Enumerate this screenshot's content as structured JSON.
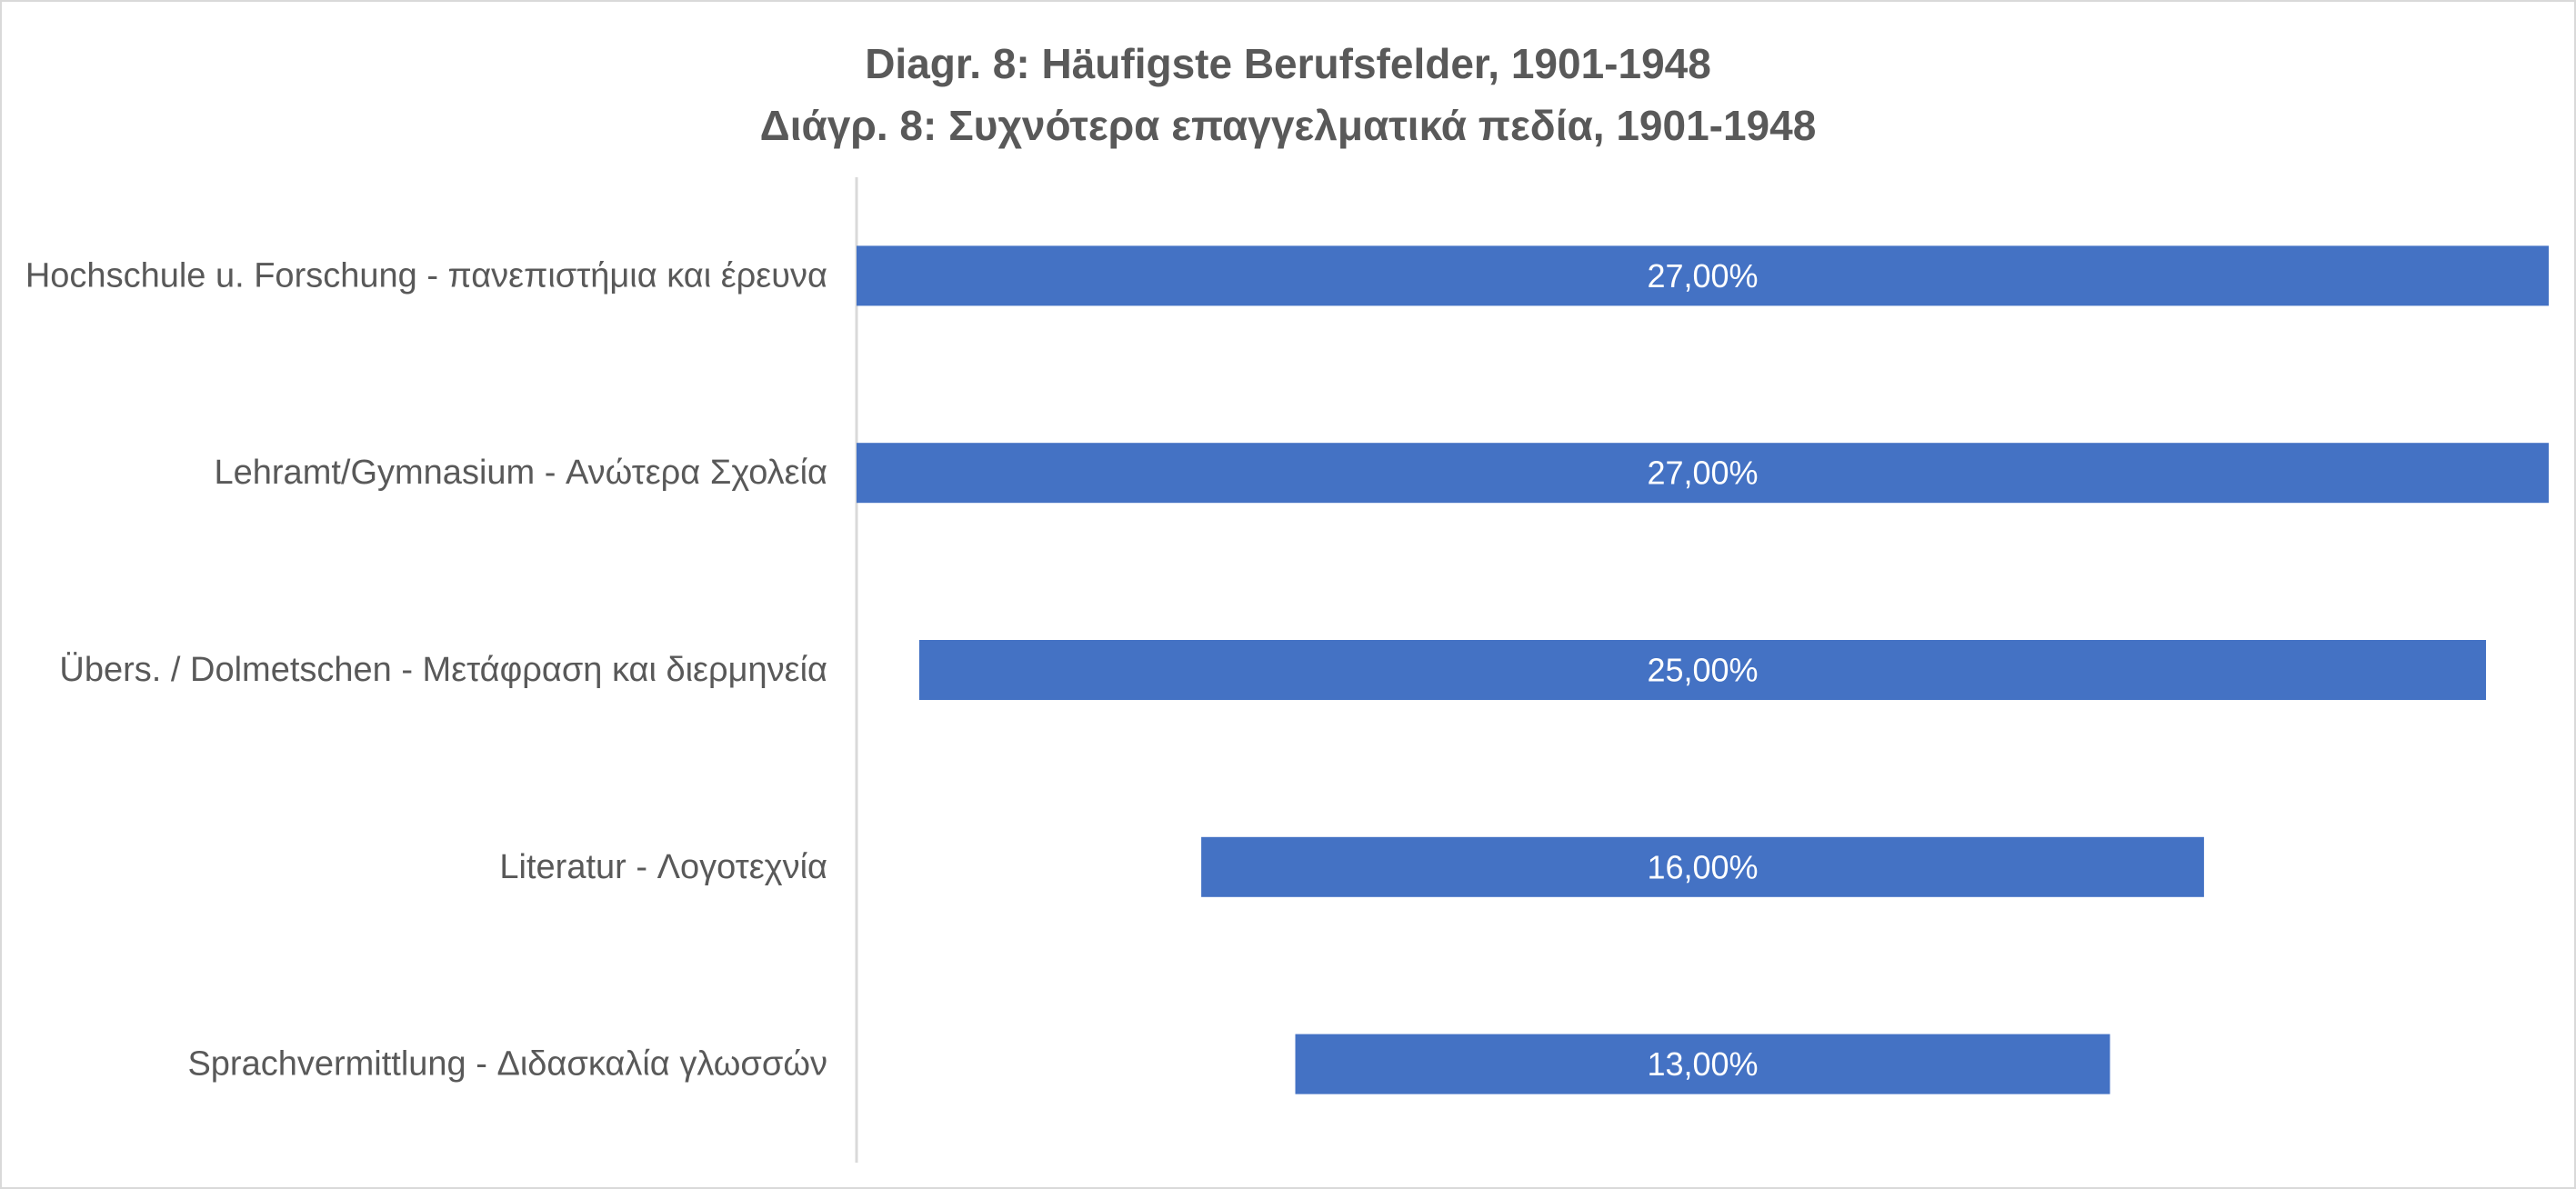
{
  "chart_data": {
    "type": "bar",
    "orientation": "horizontal",
    "alignment": "centered",
    "title": "Diagr. 8: Häufigste Berufsfelder, 1901-1948",
    "subtitle": "Διάγρ. 8: Συχνότερα επαγγελματικά πεδία, 1901-1948",
    "categories": [
      "Hochschule u. Forschung - πανεπιστήμια και έρευνα",
      "Lehramt/Gymnasium - Ανώτερα Σχολεία",
      "Übers. / Dolmetschen - Μετάφραση και διερμηνεία",
      "Literatur - Λογοτεχνία",
      "Sprachvermittlung - Διδασκαλία γλωσσών"
    ],
    "values": [
      27,
      27,
      25,
      16,
      13
    ],
    "data_labels": [
      "27,00%",
      "27,00%",
      "25,00%",
      "16,00%",
      "13,00%"
    ],
    "unit": "%",
    "xlim": [
      0,
      27
    ],
    "grid": false,
    "legend": "none",
    "colors": {
      "bar": "#4472C4",
      "axis": "#d9d9d9",
      "text": "#595959",
      "data_label": "#ffffff"
    }
  }
}
